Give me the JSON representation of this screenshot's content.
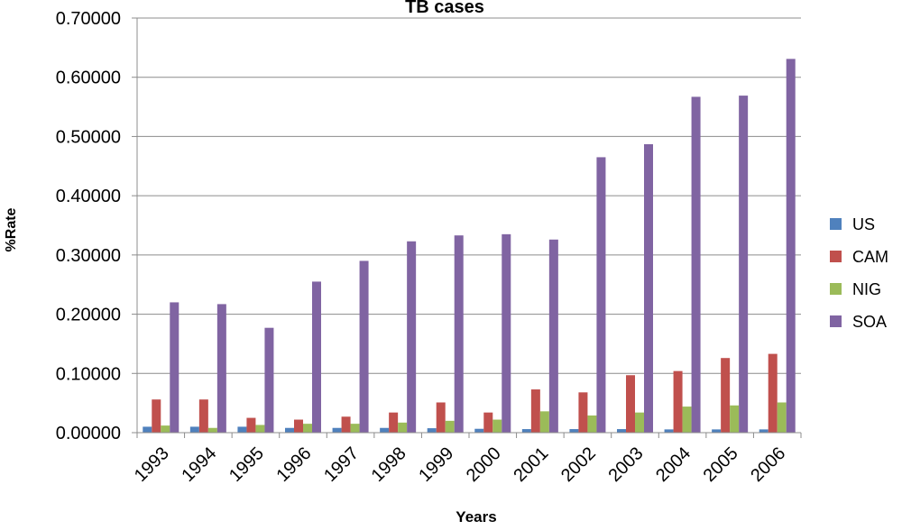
{
  "chart_data": {
    "type": "bar",
    "title": "TB cases",
    "xlabel": "Years",
    "ylabel": "%Rate",
    "ylim": [
      0,
      0.7
    ],
    "yticks": [
      0.0,
      0.1,
      0.2,
      0.3,
      0.4,
      0.5,
      0.6,
      0.7
    ],
    "ytick_labels": [
      "0.00000",
      "0.10000",
      "0.20000",
      "0.30000",
      "0.40000",
      "0.50000",
      "0.60000",
      "0.70000"
    ],
    "grid": true,
    "legend_position": "right",
    "categories": [
      "1993",
      "1994",
      "1995",
      "1996",
      "1997",
      "1998",
      "1999",
      "2000",
      "2001",
      "2002",
      "2003",
      "2004",
      "2005",
      "2006"
    ],
    "series": [
      {
        "name": "US",
        "color": "#4F81BD",
        "values": [
          0.01,
          0.01,
          0.01,
          0.008,
          0.008,
          0.008,
          0.0075,
          0.0065,
          0.006,
          0.006,
          0.006,
          0.0055,
          0.0055,
          0.0055
        ]
      },
      {
        "name": "CAM",
        "color": "#C0504D",
        "values": [
          0.056,
          0.056,
          0.025,
          0.022,
          0.027,
          0.034,
          0.051,
          0.034,
          0.073,
          0.068,
          0.097,
          0.104,
          0.126,
          0.133
        ]
      },
      {
        "name": "NIG",
        "color": "#9BBB59",
        "values": [
          0.012,
          0.008,
          0.013,
          0.015,
          0.015,
          0.017,
          0.02,
          0.022,
          0.036,
          0.029,
          0.034,
          0.044,
          0.046,
          0.051
        ]
      },
      {
        "name": "SOA",
        "color": "#8064A2",
        "values": [
          0.22,
          0.217,
          0.177,
          0.255,
          0.29,
          0.323,
          0.333,
          0.335,
          0.326,
          0.465,
          0.487,
          0.567,
          0.569,
          0.631
        ]
      }
    ]
  }
}
